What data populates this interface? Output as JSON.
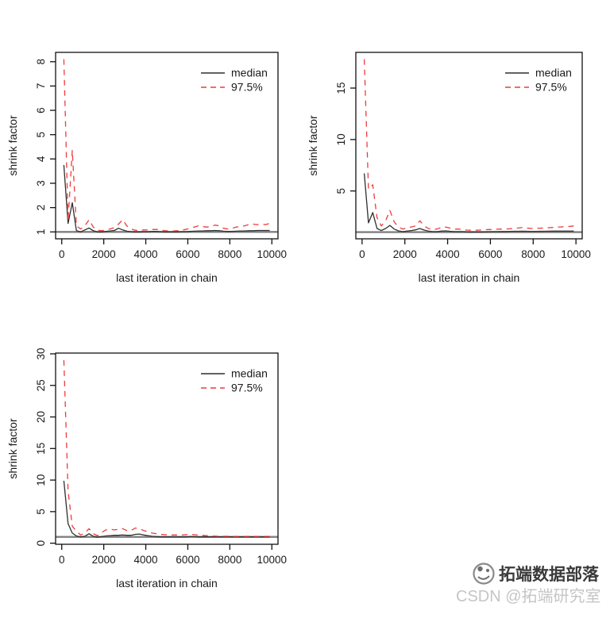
{
  "watermark": {
    "line1": "拓端数据部落",
    "line2": "CSDN @拓端研究室",
    "logo": "tecdat-cat-logo"
  },
  "colors": {
    "median": "#2f2f2f",
    "q975": "#ef3b3b",
    "hline": "#7f7f7f",
    "axis": "#111111",
    "text": "#1a1a1a"
  },
  "chart_data": [
    {
      "type": "line",
      "title": "",
      "xlabel": "last iteration in chain",
      "ylabel": "shrink factor",
      "legend_position": "top-right",
      "grid": false,
      "hline": 1,
      "xticks": [
        0,
        2000,
        4000,
        6000,
        8000,
        10000
      ],
      "yticks": [
        1,
        2,
        3,
        4,
        5,
        6,
        7,
        8
      ],
      "x": [
        100,
        300,
        500,
        700,
        900,
        1100,
        1300,
        1500,
        1700,
        1900,
        2100,
        2300,
        2500,
        2700,
        2900,
        3100,
        3300,
        3500,
        3700,
        3900,
        4100,
        4300,
        4500,
        4700,
        4900,
        5100,
        5300,
        5500,
        5700,
        5900,
        6100,
        6300,
        6500,
        6700,
        6900,
        7100,
        7300,
        7500,
        7700,
        7900,
        8100,
        8300,
        8500,
        8700,
        8900,
        9100,
        9300,
        9500,
        9700,
        9900
      ],
      "series": [
        {
          "name": "median",
          "style": "solid",
          "color": "#2f2f2f",
          "values": [
            3.75,
            1.35,
            2.2,
            1.05,
            1.0,
            1.08,
            1.16,
            1.05,
            1.0,
            1.0,
            1.02,
            1.04,
            1.06,
            1.15,
            1.08,
            1.03,
            1.01,
            1.0,
            1.0,
            1.01,
            1.01,
            1.02,
            1.02,
            1.01,
            1.0,
            1.0,
            1.0,
            1.0,
            1.01,
            1.01,
            1.02,
            1.03,
            1.04,
            1.04,
            1.05,
            1.05,
            1.06,
            1.05,
            1.03,
            1.02,
            1.02,
            1.03,
            1.04,
            1.04,
            1.05,
            1.05,
            1.06,
            1.06,
            1.06,
            1.06
          ]
        },
        {
          "name": "97.5%",
          "style": "dashed",
          "color": "#ef3b3b",
          "values": [
            8.1,
            1.45,
            4.35,
            1.25,
            1.12,
            1.25,
            1.5,
            1.2,
            1.07,
            1.05,
            1.08,
            1.12,
            1.18,
            1.32,
            1.5,
            1.25,
            1.12,
            1.07,
            1.06,
            1.08,
            1.08,
            1.1,
            1.1,
            1.08,
            1.05,
            1.04,
            1.04,
            1.05,
            1.07,
            1.1,
            1.15,
            1.2,
            1.25,
            1.22,
            1.2,
            1.22,
            1.28,
            1.25,
            1.15,
            1.12,
            1.15,
            1.2,
            1.22,
            1.25,
            1.3,
            1.32,
            1.3,
            1.32,
            1.3,
            1.35
          ]
        }
      ]
    },
    {
      "type": "line",
      "title": "",
      "xlabel": "last iteration in chain",
      "ylabel": "shrink factor",
      "legend_position": "top-right",
      "grid": false,
      "hline": 1,
      "xticks": [
        0,
        2000,
        4000,
        6000,
        8000,
        10000
      ],
      "yticks": [
        5,
        10,
        15
      ],
      "x": [
        100,
        300,
        500,
        700,
        900,
        1100,
        1300,
        1500,
        1700,
        1900,
        2100,
        2300,
        2500,
        2700,
        2900,
        3100,
        3300,
        3500,
        3700,
        3900,
        4100,
        4300,
        4500,
        4700,
        4900,
        5100,
        5300,
        5500,
        5700,
        5900,
        6100,
        6300,
        6500,
        6700,
        6900,
        7100,
        7300,
        7500,
        7700,
        7900,
        8100,
        8300,
        8500,
        8700,
        8900,
        9100,
        9300,
        9500,
        9700,
        9900
      ],
      "series": [
        {
          "name": "median",
          "style": "solid",
          "color": "#2f2f2f",
          "values": [
            6.7,
            1.9,
            2.9,
            1.35,
            1.15,
            1.35,
            1.65,
            1.3,
            1.12,
            1.05,
            1.1,
            1.15,
            1.22,
            1.35,
            1.2,
            1.1,
            1.05,
            1.05,
            1.1,
            1.12,
            1.08,
            1.05,
            1.05,
            1.05,
            1.03,
            1.02,
            1.02,
            1.03,
            1.03,
            1.04,
            1.05,
            1.05,
            1.06,
            1.06,
            1.07,
            1.08,
            1.08,
            1.09,
            1.08,
            1.07,
            1.07,
            1.08,
            1.08,
            1.09,
            1.1,
            1.1,
            1.1,
            1.1,
            1.1,
            1.1
          ]
        },
        {
          "name": "97.5%",
          "style": "dashed",
          "color": "#ef3b3b",
          "values": [
            17.8,
            5.2,
            5.6,
            2.4,
            1.6,
            2.1,
            3.1,
            2.0,
            1.5,
            1.3,
            1.4,
            1.5,
            1.6,
            2.1,
            1.6,
            1.35,
            1.25,
            1.3,
            1.45,
            1.5,
            1.4,
            1.3,
            1.3,
            1.25,
            1.2,
            1.18,
            1.18,
            1.2,
            1.22,
            1.25,
            1.25,
            1.28,
            1.3,
            1.3,
            1.32,
            1.35,
            1.4,
            1.45,
            1.4,
            1.35,
            1.35,
            1.38,
            1.4,
            1.42,
            1.45,
            1.5,
            1.5,
            1.55,
            1.55,
            1.6
          ]
        }
      ]
    },
    {
      "type": "line",
      "title": "",
      "xlabel": "last iteration in chain",
      "ylabel": "shrink factor",
      "legend_position": "top-right",
      "grid": false,
      "hline": 1,
      "xticks": [
        0,
        2000,
        4000,
        6000,
        8000,
        10000
      ],
      "yticks": [
        0,
        5,
        10,
        15,
        20,
        25,
        30
      ],
      "x": [
        100,
        300,
        500,
        700,
        900,
        1100,
        1300,
        1500,
        1700,
        1900,
        2100,
        2300,
        2500,
        2700,
        2900,
        3100,
        3300,
        3500,
        3700,
        3900,
        4100,
        4300,
        4500,
        4700,
        4900,
        5100,
        5300,
        5500,
        5700,
        5900,
        6100,
        6300,
        6500,
        6700,
        6900,
        7100,
        7300,
        7500,
        7700,
        7900,
        8100,
        8300,
        8500,
        8700,
        8900,
        9100,
        9300,
        9500,
        9700,
        9900
      ],
      "series": [
        {
          "name": "median",
          "style": "solid",
          "color": "#2f2f2f",
          "values": [
            9.9,
            3.1,
            1.6,
            1.15,
            1.0,
            1.1,
            1.5,
            1.1,
            0.95,
            1.05,
            1.15,
            1.2,
            1.25,
            1.25,
            1.3,
            1.25,
            1.25,
            1.4,
            1.45,
            1.3,
            1.2,
            1.1,
            1.05,
            1.0,
            1.0,
            1.0,
            1.0,
            1.0,
            1.0,
            1.0,
            1.05,
            1.05,
            1.0,
            1.0,
            1.0,
            1.0,
            1.0,
            1.0,
            1.0,
            1.0,
            1.0,
            1.0,
            1.0,
            1.0,
            1.0,
            1.0,
            1.0,
            1.0,
            1.0,
            1.0
          ]
        },
        {
          "name": "97.5%",
          "style": "dashed",
          "color": "#ef3b3b",
          "values": [
            29.0,
            8.3,
            2.7,
            1.9,
            1.3,
            1.6,
            2.3,
            1.5,
            1.2,
            1.7,
            2.1,
            2.2,
            2.1,
            2.2,
            2.3,
            2.0,
            2.0,
            2.4,
            2.3,
            2.0,
            1.8,
            1.6,
            1.5,
            1.4,
            1.35,
            1.3,
            1.3,
            1.3,
            1.3,
            1.35,
            1.4,
            1.35,
            1.3,
            1.25,
            1.2,
            1.15,
            1.12,
            1.1,
            1.1,
            1.1,
            1.08,
            1.08,
            1.08,
            1.08,
            1.08,
            1.08,
            1.08,
            1.08,
            1.08,
            1.08
          ]
        }
      ]
    }
  ]
}
